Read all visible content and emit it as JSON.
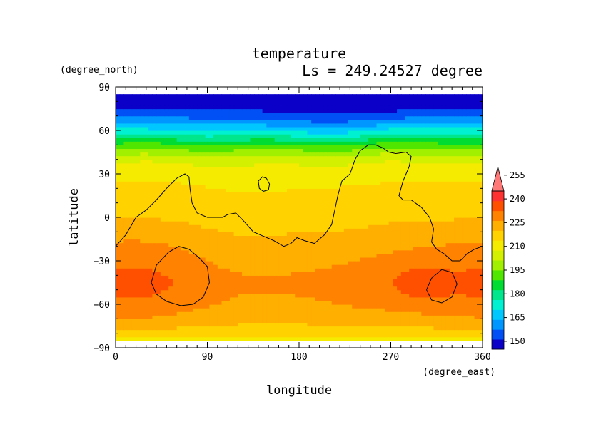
{
  "chart_data": {
    "type": "heatmap",
    "title": "temperature",
    "subtitle": "Ls = 249.24527 degree",
    "xlabel": "longitude",
    "ylabel": "latitude",
    "xunit": "(degree_east)",
    "yunit": "(degree_north)",
    "xlim": [
      0,
      360
    ],
    "ylim": [
      -90,
      90
    ],
    "xticks": [
      0,
      90,
      180,
      270,
      360
    ],
    "yticks": [
      90,
      60,
      30,
      0,
      -30,
      -60,
      -90
    ],
    "grid": false,
    "colorbar": {
      "levels": [
        150,
        165,
        180,
        195,
        210,
        225,
        240,
        255
      ],
      "labels": [
        "150",
        "165",
        "180",
        "195",
        "210",
        "225",
        "240",
        "255"
      ],
      "colors": [
        "#0a00c8",
        "#0050f5",
        "#0096ff",
        "#00c8ff",
        "#00f0d2",
        "#00e68c",
        "#00dc32",
        "#50e600",
        "#a0f000",
        "#d2f000",
        "#f5eb00",
        "#ffd200",
        "#ffaf00",
        "#ff8200",
        "#ff5000",
        "#ff3232",
        "#ff7878"
      ],
      "extend": "max"
    },
    "value_range": [
      145,
      245
    ],
    "lat_profile": {
      "lat": [
        -85,
        -80,
        -75,
        -70,
        -60,
        -45,
        -30,
        -15,
        0,
        15,
        30,
        40,
        45,
        50,
        55,
        60,
        65,
        70,
        75,
        80,
        85
      ],
      "temp": [
        211,
        216,
        219,
        222,
        225,
        227,
        225,
        223,
        219,
        217,
        212,
        206,
        198,
        190,
        180,
        171,
        163,
        156,
        151,
        148,
        147
      ]
    },
    "anomalies": [
      {
        "lon": 30,
        "lat": -45,
        "dlon": 40,
        "dlat": 22,
        "amp": 5
      },
      {
        "lon": 315,
        "lat": -45,
        "dlon": 65,
        "dlat": 20,
        "amp": 5
      },
      {
        "lon": 300,
        "lat": -45,
        "dlon": 18,
        "dlat": 7,
        "amp": 6
      },
      {
        "lon": 130,
        "lat": 5,
        "dlon": 35,
        "dlat": 22,
        "amp": -3
      },
      {
        "lon": 210,
        "lat": 0,
        "dlon": 35,
        "dlat": 20,
        "amp": -2
      },
      {
        "lon": 220,
        "lat": 65,
        "dlon": 55,
        "dlat": 10,
        "amp": -4
      },
      {
        "lon": 300,
        "lat": 58,
        "dlon": 40,
        "dlat": 8,
        "amp": 4
      }
    ],
    "contours": [
      {
        "name": "topography-line-main",
        "points": [
          [
            0,
            -20
          ],
          [
            10,
            -12
          ],
          [
            20,
            0
          ],
          [
            30,
            5
          ],
          [
            40,
            12
          ],
          [
            50,
            20
          ],
          [
            60,
            27
          ],
          [
            68,
            30
          ],
          [
            72,
            28
          ],
          [
            73,
            20
          ],
          [
            75,
            10
          ],
          [
            80,
            3
          ],
          [
            90,
            0
          ],
          [
            100,
            0
          ],
          [
            105,
            0
          ],
          [
            110,
            2
          ],
          [
            118,
            3
          ],
          [
            125,
            -2
          ],
          [
            135,
            -10
          ],
          [
            145,
            -13
          ],
          [
            155,
            -16
          ],
          [
            165,
            -20
          ],
          [
            172,
            -18
          ],
          [
            178,
            -14
          ],
          [
            185,
            -16
          ],
          [
            195,
            -18
          ],
          [
            205,
            -12
          ],
          [
            212,
            -5
          ],
          [
            215,
            5
          ],
          [
            218,
            15
          ],
          [
            220,
            20
          ],
          [
            222,
            25
          ],
          [
            230,
            30
          ],
          [
            235,
            40
          ],
          [
            240,
            46
          ],
          [
            248,
            50
          ],
          [
            255,
            50
          ],
          [
            262,
            48
          ],
          [
            268,
            45
          ],
          [
            275,
            44
          ],
          [
            285,
            45
          ],
          [
            290,
            42
          ],
          [
            288,
            35
          ],
          [
            282,
            25
          ],
          [
            278,
            15
          ],
          [
            282,
            12
          ],
          [
            290,
            12
          ],
          [
            300,
            7
          ],
          [
            308,
            0
          ],
          [
            312,
            -8
          ],
          [
            310,
            -17
          ],
          [
            315,
            -22
          ],
          [
            322,
            -25
          ],
          [
            330,
            -30
          ],
          [
            338,
            -30
          ],
          [
            345,
            -25
          ],
          [
            352,
            -22
          ],
          [
            360,
            -20
          ]
        ]
      },
      {
        "name": "topography-line-olympus",
        "points": [
          [
            140,
            25
          ],
          [
            144,
            28
          ],
          [
            148,
            27
          ],
          [
            151,
            23
          ],
          [
            150,
            19
          ],
          [
            145,
            18
          ],
          [
            141,
            20
          ],
          [
            140,
            25
          ]
        ]
      },
      {
        "name": "topography-line-hellas",
        "points": [
          [
            35,
            -45
          ],
          [
            40,
            -33
          ],
          [
            52,
            -24
          ],
          [
            62,
            -20
          ],
          [
            72,
            -22
          ],
          [
            82,
            -28
          ],
          [
            90,
            -34
          ],
          [
            92,
            -45
          ],
          [
            86,
            -55
          ],
          [
            76,
            -60
          ],
          [
            64,
            -61
          ],
          [
            50,
            -58
          ],
          [
            40,
            -53
          ],
          [
            35,
            -45
          ]
        ]
      },
      {
        "name": "topography-line-argyre",
        "points": [
          [
            305,
            -50
          ],
          [
            310,
            -42
          ],
          [
            320,
            -36
          ],
          [
            330,
            -38
          ],
          [
            335,
            -46
          ],
          [
            330,
            -55
          ],
          [
            320,
            -59
          ],
          [
            310,
            -57
          ],
          [
            305,
            -50
          ]
        ]
      }
    ]
  }
}
